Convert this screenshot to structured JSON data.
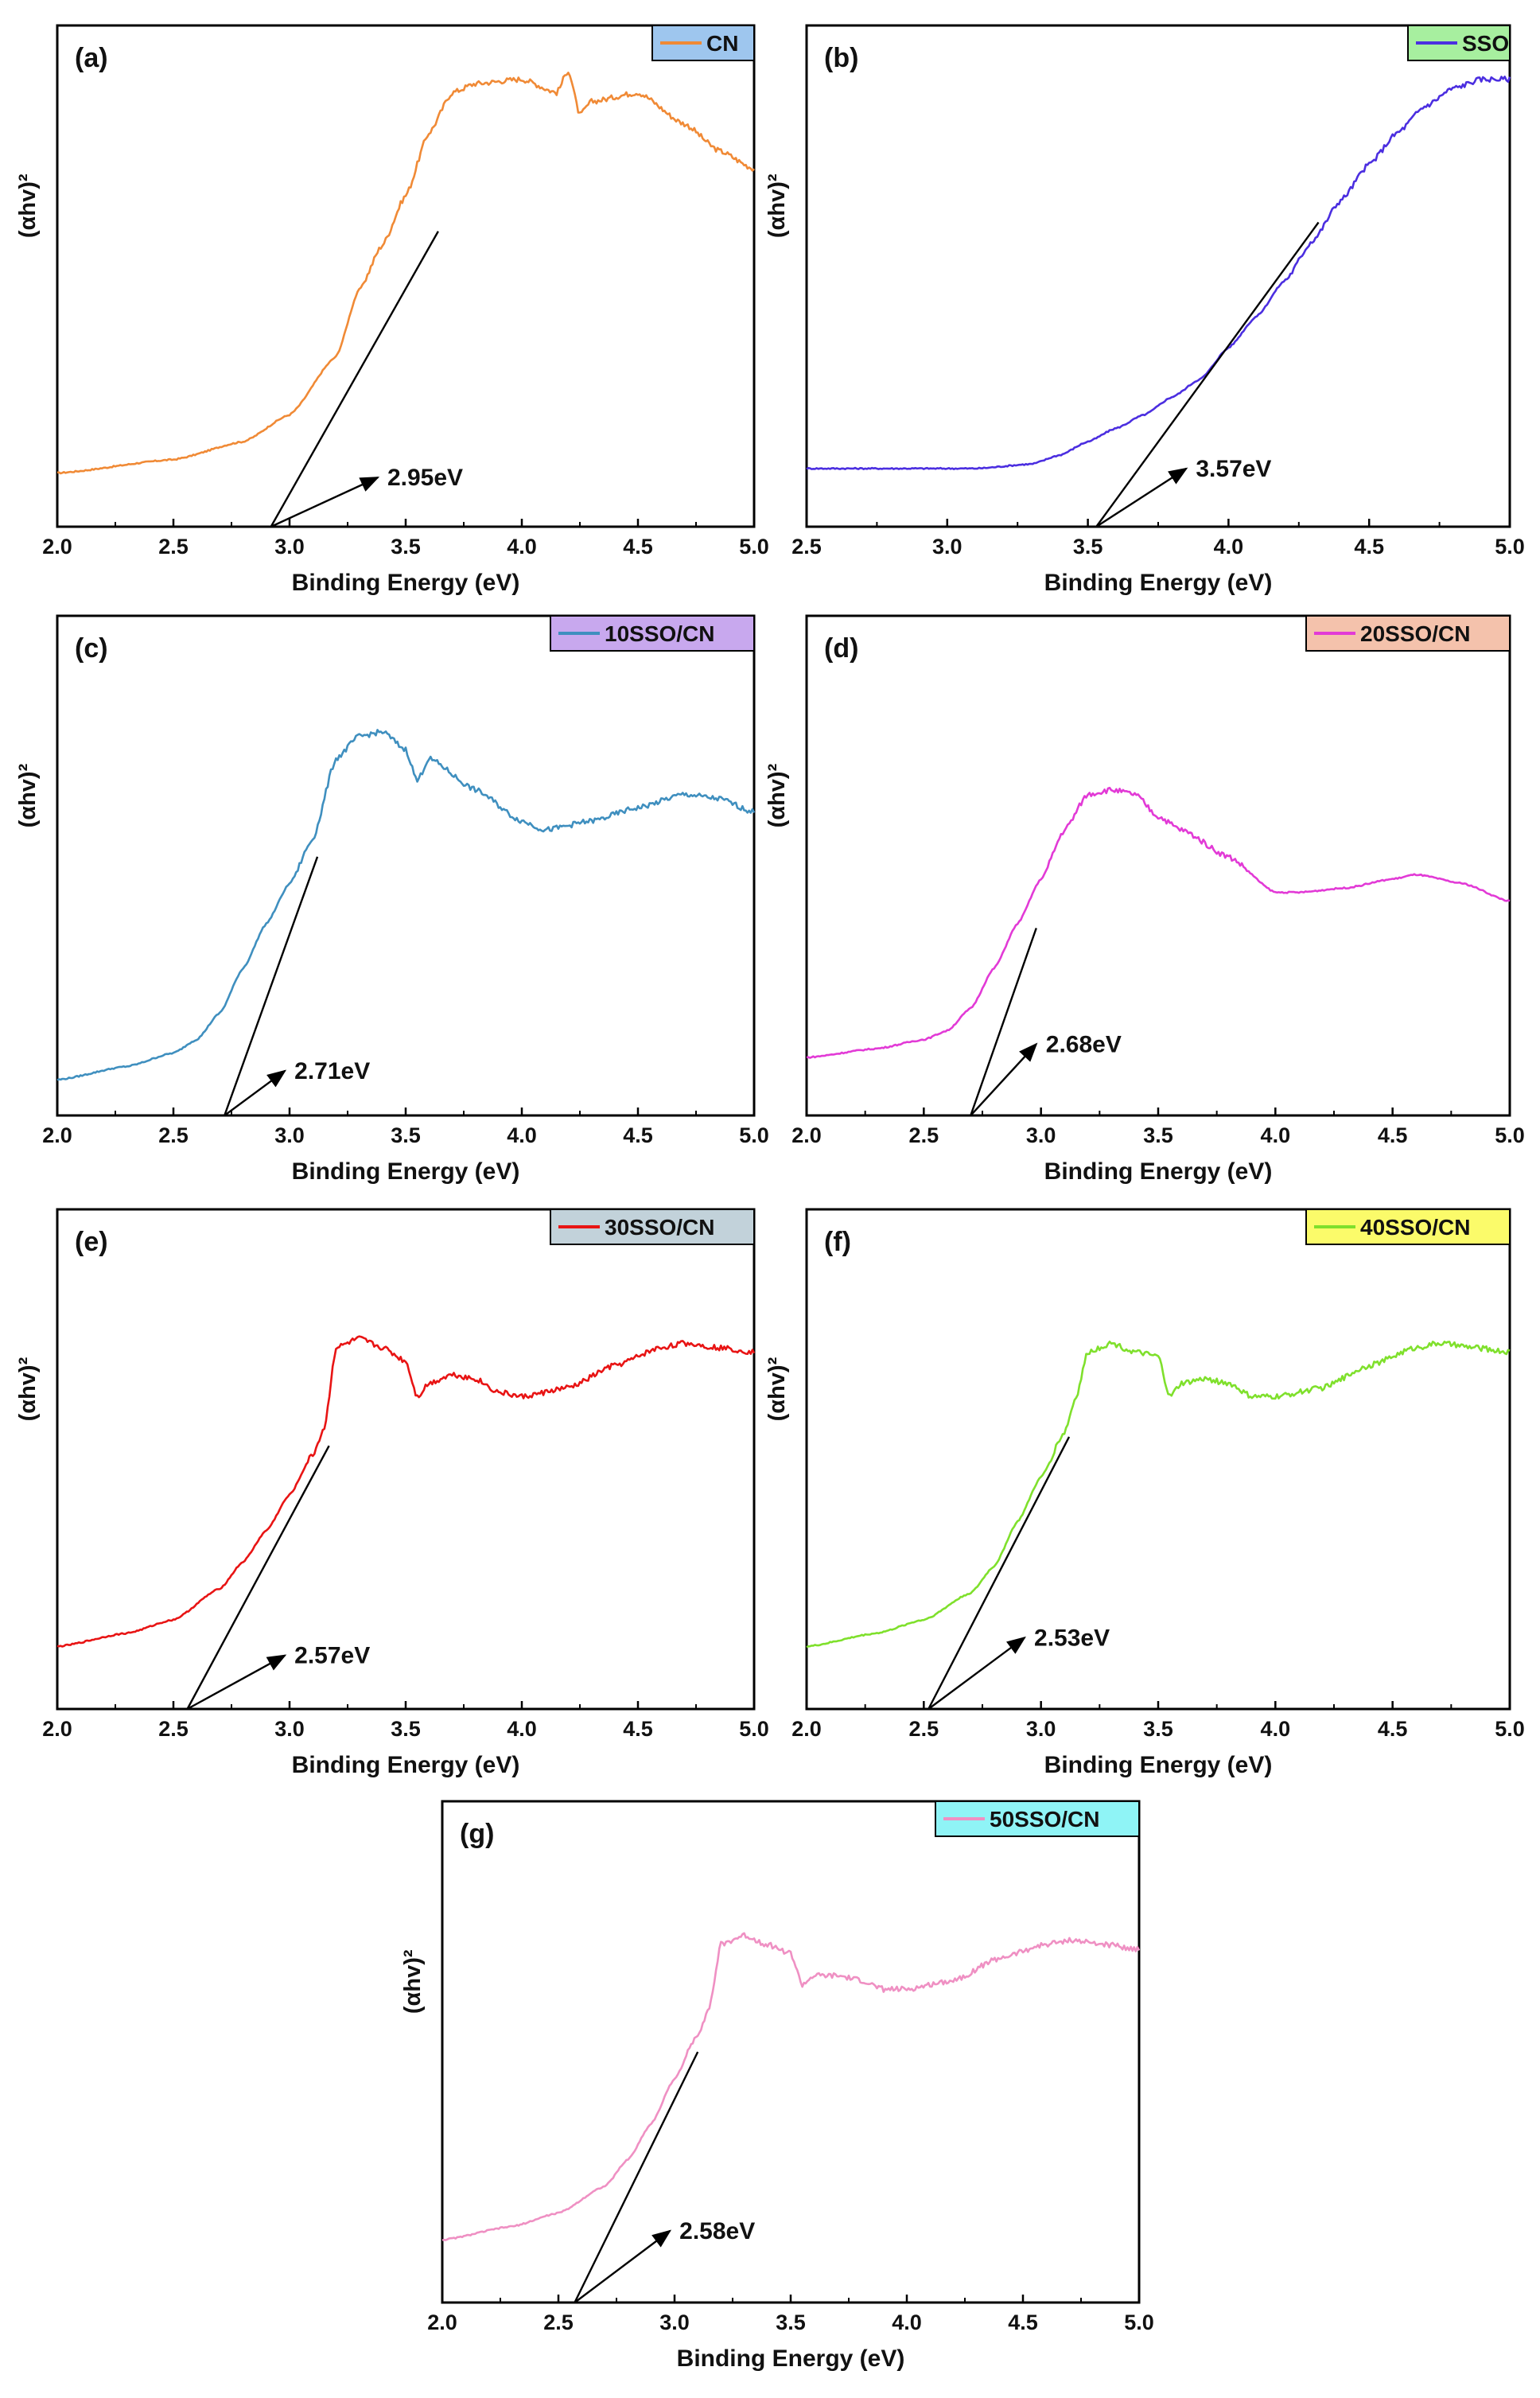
{
  "figure": {
    "xlabel": "Binding Energy (eV)",
    "ylabel": "(αhv)²"
  },
  "chart_data": [
    {
      "type": "line",
      "panel": "(a)",
      "legend": "CN",
      "legend_bg": "#9ec6ee",
      "color": "#f08a36",
      "xlabel": "Binding Energy (eV)",
      "ylabel": "(αhv)²",
      "xlim": [
        2.0,
        5.0
      ],
      "xticks": [
        "2.0",
        "2.5",
        "3.0",
        "3.5",
        "4.0",
        "4.5",
        "5.0"
      ],
      "x": [
        2.0,
        2.5,
        2.8,
        3.0,
        3.2,
        3.3,
        3.4,
        3.5,
        3.6,
        3.7,
        3.8,
        4.0,
        4.15,
        4.2,
        4.25,
        4.3,
        4.5,
        4.7,
        4.85,
        5.0
      ],
      "y": [
        0.12,
        0.15,
        0.19,
        0.25,
        0.38,
        0.53,
        0.63,
        0.74,
        0.88,
        0.97,
        0.99,
        1.0,
        0.97,
        1.02,
        0.92,
        0.95,
        0.97,
        0.9,
        0.84,
        0.8
      ],
      "tangent": [
        [
          2.92,
          0.0
        ],
        [
          3.64,
          0.66
        ]
      ],
      "annotation": {
        "text": "2.95eV",
        "x": 2.92,
        "y": 0.0,
        "tx": 3.38,
        "ty": 0.11
      }
    },
    {
      "type": "line",
      "panel": "(b)",
      "legend": "SSO",
      "legend_bg": "#a7ef9f",
      "color": "#4b2ee0",
      "xlabel": "Binding Energy (eV)",
      "ylabel": "(αhv)²",
      "xlim": [
        2.5,
        5.0
      ],
      "xticks": [
        "2.5",
        "3.0",
        "3.5",
        "4.0",
        "4.5",
        "5.0"
      ],
      "x": [
        2.5,
        2.8,
        3.1,
        3.3,
        3.4,
        3.5,
        3.6,
        3.7,
        3.8,
        3.9,
        4.0,
        4.1,
        4.2,
        4.3,
        4.4,
        4.5,
        4.6,
        4.7,
        4.8,
        4.9,
        5.0
      ],
      "y": [
        0.13,
        0.13,
        0.13,
        0.14,
        0.16,
        0.19,
        0.22,
        0.25,
        0.29,
        0.33,
        0.4,
        0.47,
        0.55,
        0.64,
        0.73,
        0.81,
        0.88,
        0.94,
        0.98,
        1.0,
        1.0
      ],
      "tangent": [
        [
          3.53,
          0.0
        ],
        [
          4.32,
          0.68
        ]
      ],
      "annotation": {
        "text": "3.57eV",
        "x": 3.53,
        "y": 0.0,
        "tx": 3.85,
        "ty": 0.13
      }
    },
    {
      "type": "line",
      "panel": "(c)",
      "legend": "10SSO/CN",
      "legend_bg": "#c8a8ee",
      "color": "#3f8fbf",
      "xlabel": "Binding Energy (eV)",
      "ylabel": "(αhv)²",
      "xlim": [
        2.0,
        5.0
      ],
      "xticks": [
        "2.0",
        "2.5",
        "3.0",
        "3.5",
        "4.0",
        "4.5",
        "5.0"
      ],
      "x": [
        2.0,
        2.3,
        2.5,
        2.6,
        2.7,
        2.8,
        2.9,
        3.0,
        3.1,
        3.2,
        3.3,
        3.4,
        3.5,
        3.55,
        3.6,
        3.8,
        4.0,
        4.1,
        4.3,
        4.5,
        4.7,
        4.85,
        5.0
      ],
      "y": [
        0.08,
        0.11,
        0.14,
        0.17,
        0.23,
        0.33,
        0.43,
        0.52,
        0.62,
        0.8,
        0.85,
        0.86,
        0.82,
        0.75,
        0.8,
        0.73,
        0.66,
        0.64,
        0.66,
        0.69,
        0.72,
        0.71,
        0.68
      ],
      "tangent": [
        [
          2.72,
          0.0
        ],
        [
          3.12,
          0.58
        ]
      ],
      "annotation": {
        "text": "2.71eV",
        "x": 2.72,
        "y": 0.0,
        "tx": 2.98,
        "ty": 0.1
      }
    },
    {
      "type": "line",
      "panel": "(d)",
      "legend": "20SSO/CN",
      "legend_bg": "#f4c2ac",
      "color": "#e23ad6",
      "xlabel": "Binding Energy (eV)",
      "ylabel": "(αhv)²",
      "xlim": [
        2.0,
        5.0
      ],
      "xticks": [
        "2.0",
        "2.5",
        "3.0",
        "3.5",
        "4.0",
        "4.5",
        "5.0"
      ],
      "x": [
        2.0,
        2.3,
        2.5,
        2.6,
        2.7,
        2.8,
        2.9,
        3.0,
        3.1,
        3.2,
        3.3,
        3.4,
        3.5,
        3.6,
        3.8,
        4.0,
        4.1,
        4.3,
        4.5,
        4.6,
        4.8,
        5.0
      ],
      "y": [
        0.13,
        0.15,
        0.17,
        0.19,
        0.24,
        0.33,
        0.43,
        0.53,
        0.64,
        0.72,
        0.73,
        0.72,
        0.67,
        0.64,
        0.58,
        0.5,
        0.5,
        0.51,
        0.53,
        0.54,
        0.52,
        0.48
      ],
      "tangent": [
        [
          2.7,
          0.0
        ],
        [
          2.98,
          0.42
        ]
      ],
      "annotation": {
        "text": "2.68eV",
        "x": 2.7,
        "y": 0.0,
        "tx": 2.98,
        "ty": 0.16
      }
    },
    {
      "type": "line",
      "panel": "(e)",
      "legend": "30SSO/CN",
      "legend_bg": "#c2d2da",
      "color": "#e81414",
      "xlabel": "Binding Energy (eV)",
      "ylabel": "(αhv)²",
      "xlim": [
        2.0,
        5.0
      ],
      "xticks": [
        "2.0",
        "2.5",
        "3.0",
        "3.5",
        "4.0",
        "4.5",
        "5.0"
      ],
      "x": [
        2.0,
        2.3,
        2.5,
        2.7,
        2.8,
        2.9,
        3.0,
        3.1,
        3.15,
        3.2,
        3.3,
        3.4,
        3.5,
        3.55,
        3.6,
        3.7,
        3.8,
        3.9,
        4.0,
        4.2,
        4.4,
        4.6,
        4.7,
        4.85,
        5.0
      ],
      "y": [
        0.14,
        0.17,
        0.2,
        0.27,
        0.33,
        0.4,
        0.48,
        0.57,
        0.63,
        0.81,
        0.83,
        0.81,
        0.78,
        0.7,
        0.73,
        0.75,
        0.74,
        0.71,
        0.7,
        0.72,
        0.77,
        0.81,
        0.82,
        0.81,
        0.8
      ],
      "tangent": [
        [
          2.56,
          0.0
        ],
        [
          3.17,
          0.59
        ]
      ],
      "annotation": {
        "text": "2.57eV",
        "x": 2.56,
        "y": 0.0,
        "tx": 2.98,
        "ty": 0.12
      }
    },
    {
      "type": "line",
      "panel": "(f)",
      "legend": "40SSO/CN",
      "legend_bg": "#fbfb6a",
      "color": "#7fe02c",
      "xlabel": "Binding Energy (eV)",
      "ylabel": "(αhv)²",
      "xlim": [
        2.0,
        5.0
      ],
      "xticks": [
        "2.0",
        "2.5",
        "3.0",
        "3.5",
        "4.0",
        "4.5",
        "5.0"
      ],
      "x": [
        2.0,
        2.3,
        2.5,
        2.7,
        2.8,
        2.9,
        3.0,
        3.1,
        3.15,
        3.2,
        3.3,
        3.4,
        3.5,
        3.55,
        3.6,
        3.7,
        3.8,
        3.9,
        4.0,
        4.2,
        4.4,
        4.6,
        4.7,
        4.85,
        5.0
      ],
      "y": [
        0.14,
        0.17,
        0.2,
        0.26,
        0.32,
        0.42,
        0.52,
        0.62,
        0.7,
        0.8,
        0.82,
        0.8,
        0.79,
        0.7,
        0.73,
        0.74,
        0.73,
        0.7,
        0.7,
        0.72,
        0.77,
        0.81,
        0.82,
        0.81,
        0.8
      ],
      "tangent": [
        [
          2.52,
          0.0
        ],
        [
          3.12,
          0.61
        ]
      ],
      "annotation": {
        "text": "2.53eV",
        "x": 2.52,
        "y": 0.0,
        "tx": 2.93,
        "ty": 0.16
      }
    },
    {
      "type": "line",
      "panel": "(g)",
      "legend": "50SSO/CN",
      "legend_bg": "#8ff4f6",
      "color": "#ef90c3",
      "xlabel": "Binding Energy (eV)",
      "ylabel": "(αhv)²",
      "xlim": [
        2.0,
        5.0
      ],
      "xticks": [
        "2.0",
        "2.5",
        "3.0",
        "3.5",
        "4.0",
        "4.5",
        "5.0"
      ],
      "x": [
        2.0,
        2.3,
        2.5,
        2.7,
        2.8,
        2.9,
        3.0,
        3.1,
        3.15,
        3.2,
        3.3,
        3.4,
        3.5,
        3.55,
        3.6,
        3.7,
        3.8,
        3.9,
        4.0,
        4.2,
        4.4,
        4.6,
        4.7,
        4.85,
        5.0
      ],
      "y": [
        0.14,
        0.17,
        0.2,
        0.26,
        0.32,
        0.4,
        0.5,
        0.6,
        0.66,
        0.8,
        0.82,
        0.8,
        0.78,
        0.71,
        0.73,
        0.73,
        0.72,
        0.7,
        0.7,
        0.72,
        0.77,
        0.8,
        0.81,
        0.8,
        0.79
      ],
      "tangent": [
        [
          2.57,
          0.0
        ],
        [
          3.1,
          0.56
        ]
      ],
      "annotation": {
        "text": "2.58eV",
        "x": 2.57,
        "y": 0.0,
        "tx": 2.98,
        "ty": 0.16
      }
    }
  ]
}
